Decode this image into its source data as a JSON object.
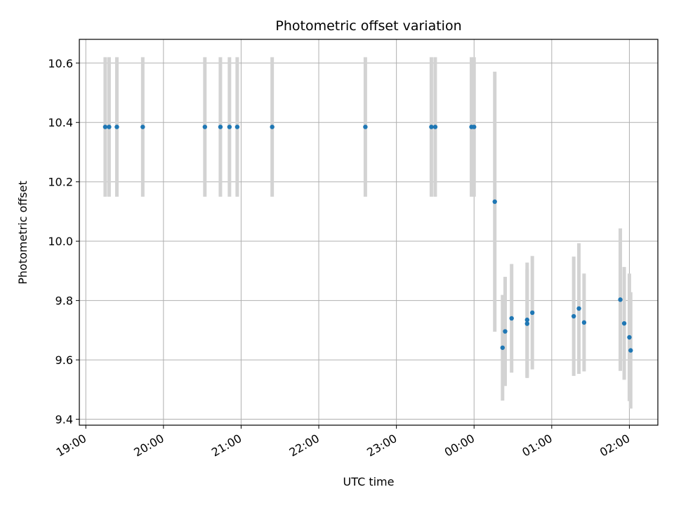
{
  "chart_data": {
    "type": "scatter",
    "title": "Photometric offset variation",
    "xlabel": "UTC time",
    "ylabel": "Photometric offset",
    "grid": true,
    "xlim": [
      "18:55",
      "02:22"
    ],
    "ylim": [
      9.38,
      10.68
    ],
    "x_tick_labels": [
      "19:00",
      "20:00",
      "21:00",
      "22:00",
      "23:00",
      "00:00",
      "01:00",
      "02:00"
    ],
    "y_ticks": [
      9.4,
      9.6,
      9.8,
      10.0,
      10.2,
      10.4,
      10.6
    ],
    "y_tick_labels": [
      "9.4",
      "9.6",
      "9.8",
      "10.0",
      "10.2",
      "10.4",
      "10.6"
    ],
    "colors": {
      "marker": "#1f77b4",
      "errorbar": "#d3d3d3"
    },
    "series": [
      {
        "x": [
          "19:15",
          "19:18",
          "19:24",
          "19:44",
          "20:32",
          "20:44",
          "20:51",
          "20:57",
          "21:24",
          "22:36",
          "23:27",
          "23:30",
          "23:58",
          "00:00",
          "00:16",
          "00:22",
          "00:24",
          "00:29",
          "00:41",
          "00:41",
          "00:45",
          "01:17",
          "01:21",
          "01:25",
          "01:53",
          "01:56",
          "02:00",
          "02:01"
        ],
        "y": [
          10.385,
          10.385,
          10.385,
          10.385,
          10.385,
          10.385,
          10.385,
          10.385,
          10.385,
          10.385,
          10.385,
          10.385,
          10.385,
          10.385,
          10.133,
          9.641,
          9.696,
          9.74,
          9.735,
          9.722,
          9.759,
          9.747,
          9.773,
          9.726,
          9.803,
          9.723,
          9.676,
          9.632
        ],
        "yerr": [
          0.235,
          0.235,
          0.235,
          0.235,
          0.235,
          0.235,
          0.235,
          0.235,
          0.235,
          0.235,
          0.235,
          0.235,
          0.235,
          0.235,
          0.438,
          0.178,
          0.184,
          0.183,
          0.193,
          0.183,
          0.191,
          0.201,
          0.22,
          0.165,
          0.24,
          0.19,
          0.215,
          0.196
        ]
      }
    ]
  }
}
